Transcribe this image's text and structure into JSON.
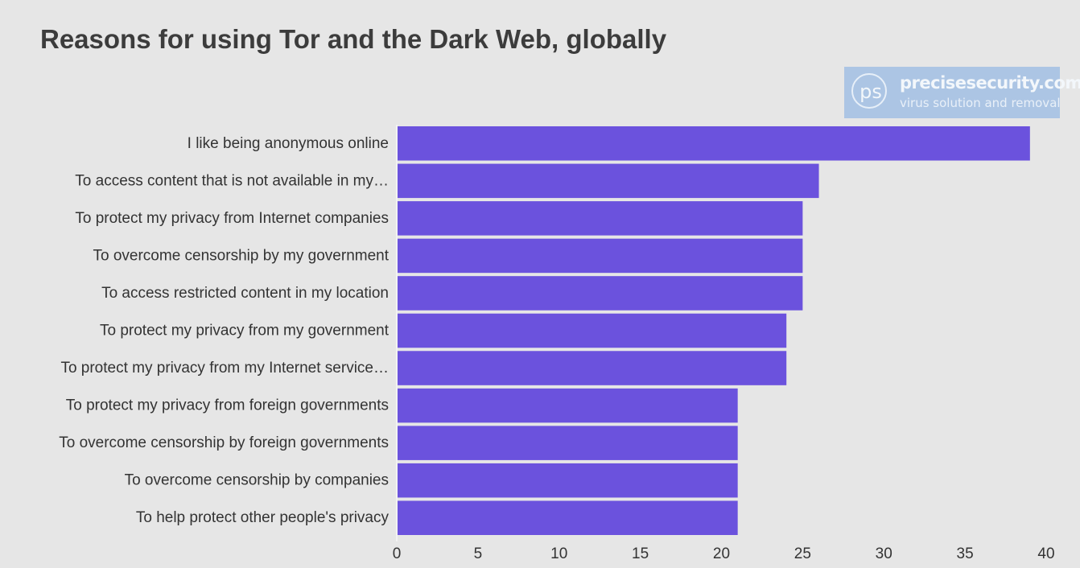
{
  "title": "Reasons for using Tor and the Dark Web, globally",
  "watermark": {
    "logo": "ps",
    "domain": "precisesecurity.com",
    "tagline": "virus solution and removal"
  },
  "colors": {
    "bar": "#6b52dd",
    "background": "#e6e6e6",
    "title": "#3c3c3c",
    "text": "#333333"
  },
  "chart_data": {
    "type": "bar",
    "orientation": "horizontal",
    "title": "Reasons for using Tor and the Dark Web, globally",
    "xlabel": "",
    "ylabel": "",
    "categories": [
      "I like being anonymous online",
      "To access content that is not available in my…",
      "To protect my privacy from Internet companies",
      "To overcome censorship by my government",
      "To access restricted content in my location",
      "To protect my privacy from my government",
      "To protect my privacy from my Internet service…",
      "To protect my privacy from foreign governments",
      "To overcome censorship by foreign governments",
      "To overcome censorship by companies",
      "To help protect other people's privacy"
    ],
    "values": [
      39,
      26,
      25,
      25,
      25,
      24,
      24,
      21,
      21,
      21,
      21
    ],
    "xlim": [
      0,
      40
    ],
    "xticks": [
      0,
      5,
      10,
      15,
      20,
      25,
      30,
      35,
      40
    ],
    "grid": false,
    "legend": "none"
  }
}
